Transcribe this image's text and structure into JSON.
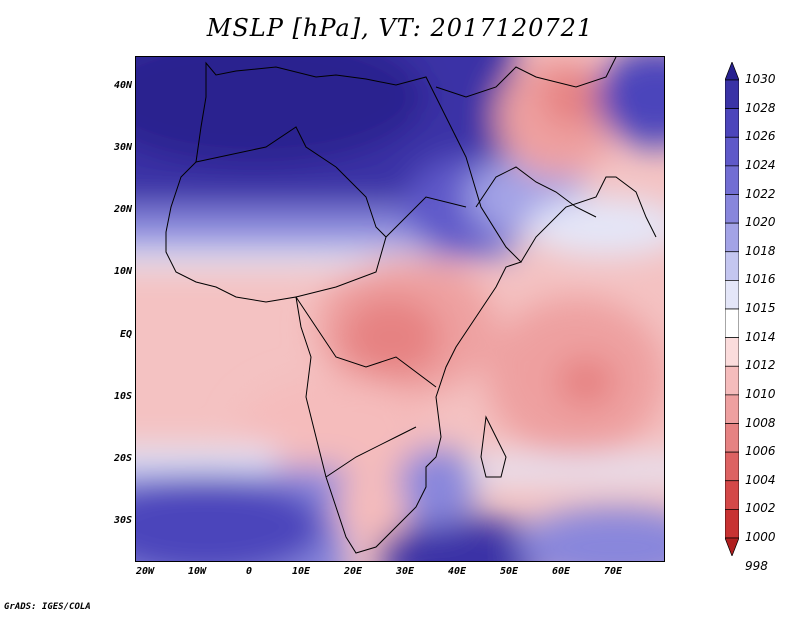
{
  "title": "MSLP [hPa], VT: 2017120721",
  "credit": "GrADS: IGES/COLA",
  "lat_labels": [
    "40N",
    "30N",
    "20N",
    "10N",
    "EQ",
    "10S",
    "20S",
    "30S"
  ],
  "lon_labels": [
    "20W",
    "10W",
    "0",
    "10E",
    "20E",
    "30E",
    "40E",
    "50E",
    "60E",
    "70E"
  ],
  "colorbar": {
    "levels": [
      "1030",
      "1028",
      "1026",
      "1024",
      "1022",
      "1020",
      "1018",
      "1016",
      "1015",
      "1014",
      "1012",
      "1010",
      "1008",
      "1006",
      "1004",
      "1002",
      "1000",
      "998"
    ],
    "colors": [
      "#27218f",
      "#3a33a6",
      "#4c45bb",
      "#5f59c9",
      "#726ed3",
      "#8886dc",
      "#a3a3e6",
      "#c4c6f0",
      "#e4e6f8",
      "#ffffff",
      "#fbdcdc",
      "#f5bcbc",
      "#eea0a0",
      "#e68282",
      "#dd6262",
      "#d44848",
      "#c83232",
      "#b01f1f"
    ]
  },
  "colors": {
    "high_pressure": "#2a238f",
    "low_pressure": "#f0a6a6",
    "neutral": "#ffffff",
    "borders": "#000000"
  }
}
